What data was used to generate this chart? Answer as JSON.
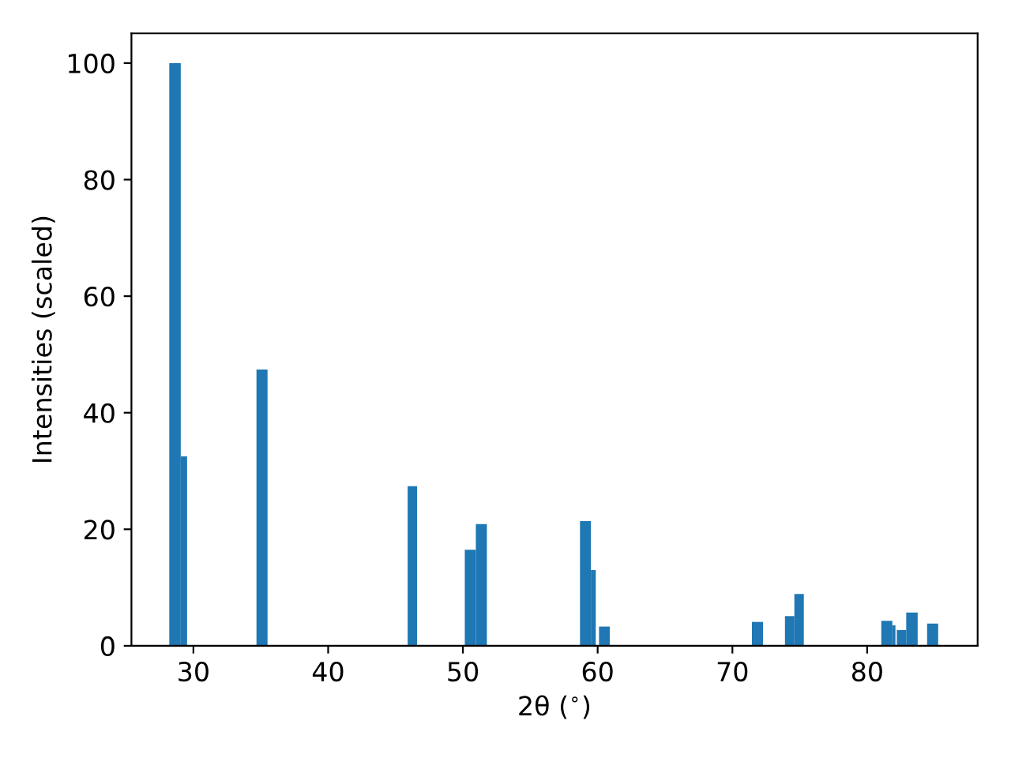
{
  "chart_data": {
    "type": "histogram",
    "xlabel": "2θ ($^{∘}$)",
    "ylabel": "Intensities (scaled)",
    "bins": [
      28.21,
      29.06,
      29.53,
      34.68,
      35.5,
      45.9,
      46.6,
      50.14,
      50.96,
      51.78,
      58.69,
      59.5,
      59.86,
      60.1,
      60.9,
      71.45,
      72.27,
      73.9,
      74.6,
      75.3,
      81.05,
      81.87,
      82.1,
      82.2,
      82.9,
      83.75,
      84.45,
      85.27
    ],
    "values": [
      100,
      32.5,
      0,
      47.4,
      0,
      27.4,
      0,
      16.5,
      20.9,
      0,
      21.4,
      13.0,
      0,
      3.3,
      0,
      4.1,
      0,
      5.1,
      8.9,
      0,
      4.3,
      3.5,
      0,
      2.7,
      5.7,
      0,
      3.8
    ],
    "color": "#1f77b4",
    "xlim": [
      25.4,
      88.2
    ],
    "ylim": [
      0,
      105.1
    ],
    "xticks": [
      30,
      40,
      50,
      60,
      70,
      80
    ],
    "yticks": [
      0,
      20,
      40,
      60,
      80,
      100
    ],
    "grid": false,
    "legend": false
  }
}
